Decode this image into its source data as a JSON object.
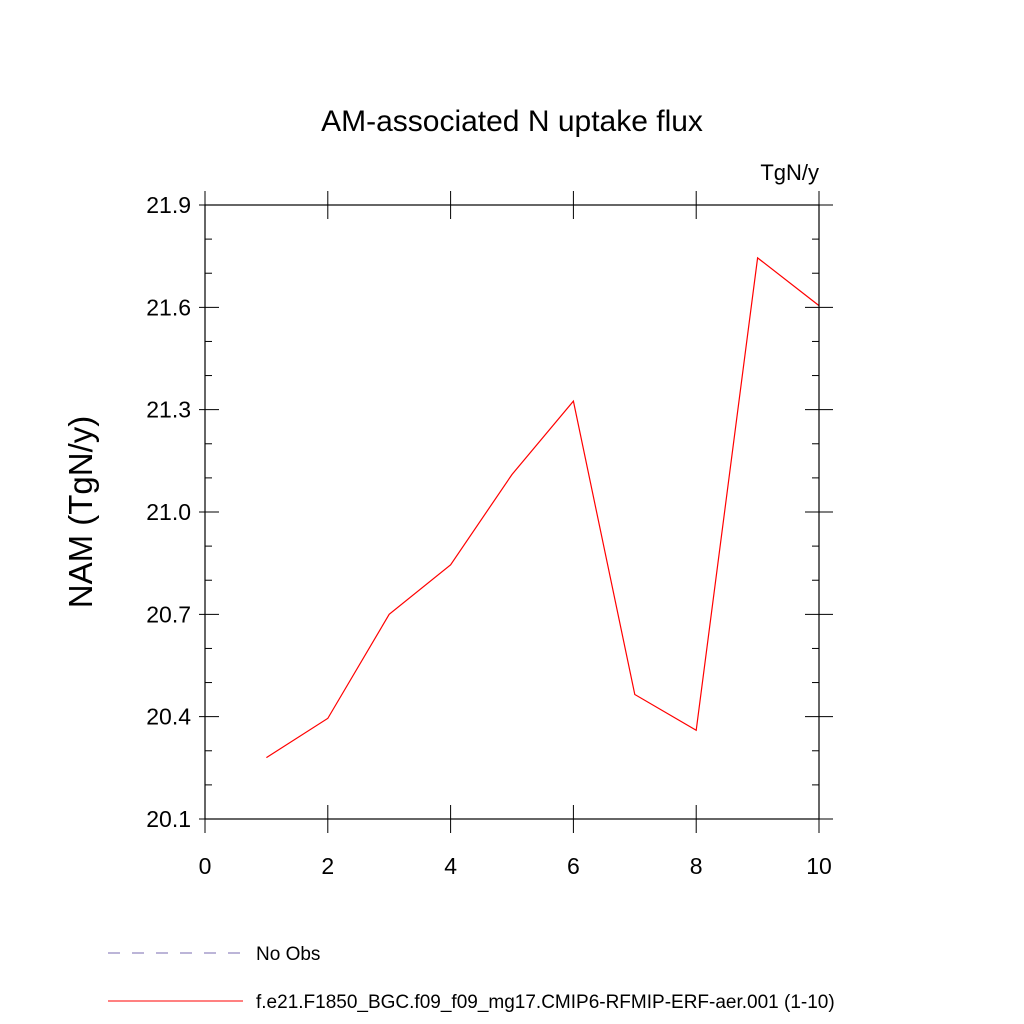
{
  "chart_data": {
    "type": "line",
    "title": "AM-associated N uptake flux",
    "units_label": "TgN/y",
    "xlabel": "",
    "ylabel": "NAM  (TgN/y)",
    "xlim": [
      0,
      10
    ],
    "ylim": [
      20.1,
      21.9
    ],
    "x_ticks": [
      0,
      2,
      4,
      6,
      8,
      10
    ],
    "x_tick_labels": [
      "0",
      "2",
      "4",
      "6",
      "8",
      "10"
    ],
    "y_ticks": [
      20.1,
      20.4,
      20.7,
      21.0,
      21.3,
      21.6,
      21.9
    ],
    "y_tick_labels": [
      "20.1",
      "20.4",
      "20.7",
      "21.0",
      "21.3",
      "21.6",
      "21.9"
    ],
    "grid": false,
    "legend_position": "bottom",
    "series": [
      {
        "name": "No Obs",
        "color": "#7a6bb0",
        "dash": "dashed",
        "x": [],
        "y": []
      },
      {
        "name": "f.e21.F1850_BGC.f09_f09_mg17.CMIP6-RFMIP-ERF-aer.001 (1-10)",
        "color": "#ff0000",
        "dash": "solid",
        "x": [
          1,
          2,
          3,
          4,
          5,
          6,
          7,
          8,
          9,
          10
        ],
        "y": [
          20.28,
          20.395,
          20.7,
          20.845,
          21.11,
          21.325,
          20.465,
          20.36,
          21.745,
          21.605
        ]
      }
    ]
  }
}
